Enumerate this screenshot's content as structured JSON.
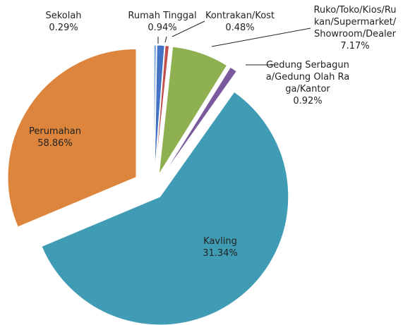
{
  "chart_data": {
    "type": "pie",
    "categories": [
      "Sekolah",
      "Rumah Tinggal",
      "Kontrakan/Kost",
      "Ruko/Toko/Kios/Rukan/Supermarket/Showroom/Dealer",
      "Gedung Serbaguna/Gedung Olah Raga/Kantor",
      "Perumahan",
      "Kavling"
    ],
    "values": [
      0.29,
      0.94,
      0.48,
      7.17,
      0.92,
      58.86,
      31.34
    ],
    "value_labels": [
      "0.29%",
      "0.94%",
      "0.48%",
      "7.17%",
      "0.92%",
      "58.86%",
      "31.34%"
    ],
    "colors": [
      "#7ea6d8",
      "#4472c4",
      "#c0504d",
      "#8fb050",
      "#7a5a9c",
      "#409cb4",
      "#dd853c"
    ]
  }
}
